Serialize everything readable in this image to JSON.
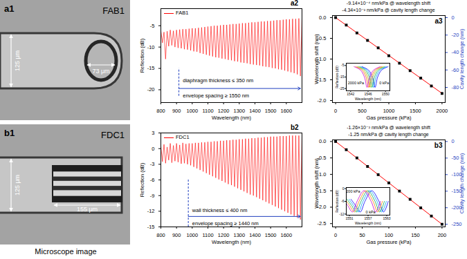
{
  "caption": "Microscope image",
  "chart_data": [
    {
      "type": "image",
      "panel": "a1",
      "title": "FAB1",
      "annotations": [
        {
          "text": "125 μm"
        },
        {
          "text": "73 μm"
        }
      ]
    },
    {
      "type": "line",
      "panel": "a2",
      "legend": "top-left",
      "x_label": "Wavelength (nm)",
      "y_label": "Reflection (dB)",
      "xlim": [
        800,
        1700
      ],
      "xticks": [
        800,
        900,
        1000,
        1100,
        1200,
        1300,
        1400,
        1500,
        1600
      ],
      "ylim": [
        -23,
        -1
      ],
      "yticks": [
        -20,
        -15,
        -10,
        -5
      ],
      "x": [
        800,
        810,
        820,
        830,
        840,
        850,
        860,
        870,
        880,
        890,
        900,
        910,
        920,
        930,
        940,
        950,
        960,
        970,
        980,
        990,
        1000,
        1010,
        1020,
        1030,
        1040,
        1050,
        1060,
        1070,
        1080,
        1090,
        1100,
        1110,
        1120,
        1130,
        1140,
        1150,
        1160,
        1170,
        1180,
        1190,
        1200,
        1210,
        1220,
        1230,
        1240,
        1250,
        1260,
        1270,
        1280,
        1290,
        1300,
        1310,
        1320,
        1330,
        1340,
        1350,
        1360,
        1370,
        1380,
        1390,
        1400,
        1410,
        1420,
        1430,
        1440,
        1450,
        1460,
        1470,
        1480,
        1490,
        1500,
        1510,
        1520,
        1530,
        1540,
        1550,
        1560,
        1570,
        1580,
        1590,
        1600,
        1610,
        1620,
        1630,
        1640,
        1650,
        1660,
        1670,
        1680,
        1690,
        1700
      ],
      "series": [
        {
          "name": "FAB1",
          "color": "#ff0000",
          "values": [
            -6.2,
            -9.0,
            -6.5,
            -12.8,
            -6.3,
            -9.8,
            -6.0,
            -9.6,
            -6.2,
            -10.0,
            -6.0,
            -10.2,
            -5.9,
            -10.3,
            -5.8,
            -10.5,
            -5.8,
            -10.6,
            -5.7,
            -10.8,
            -5.6,
            -11.0,
            -5.6,
            -11.1,
            -5.5,
            -11.4,
            -5.4,
            -11.6,
            -5.3,
            -11.8,
            -5.2,
            -12.0,
            -5.1,
            -12.2,
            -5.0,
            -12.4,
            -5.0,
            -12.5,
            -4.9,
            -12.7,
            -4.8,
            -12.8,
            -4.8,
            -13.0,
            -4.7,
            -13.1,
            -4.6,
            -13.3,
            -4.6,
            -13.4,
            -4.5,
            -13.6,
            -4.4,
            -13.7,
            -4.4,
            -13.8,
            -4.3,
            -14.0,
            -4.2,
            -14.1,
            -4.2,
            -14.2,
            -4.1,
            -14.3,
            -4.0,
            -14.5,
            -4.0,
            -14.6,
            -3.9,
            -14.7,
            -3.9,
            -14.9,
            -3.8,
            -15.0,
            -3.7,
            -15.2,
            -3.7,
            -15.3,
            -3.6,
            -15.5,
            -3.5,
            -15.7,
            -3.5,
            -15.9,
            -3.4,
            -16.1,
            -3.4,
            -16.4,
            -3.3,
            -16.8,
            -3.2
          ]
        }
      ],
      "reference_lines": [
        {
          "x": 915,
          "y1": -21.5,
          "y2": -15,
          "color": "#1f3fbf",
          "line_style": "dashed"
        }
      ],
      "arrows": [
        {
          "x1": 915,
          "x2": 1690,
          "y": -19.7,
          "color": "#1f3fbf"
        }
      ],
      "annotations": [
        {
          "text": "diaphragm thickness ≤ 350 nm",
          "x": 940,
          "y": -17.8
        },
        {
          "text": "envelope spacing ≥ 1550 nm",
          "x": 940,
          "y": -21.4
        }
      ]
    },
    {
      "type": "scatter",
      "panel": "a3",
      "x_label": "Gas pressure (kPa)",
      "y_label": "Wavelength shift (nm)",
      "y2_label": "Cavity length change (nm)",
      "xlim": [
        -60,
        2060
      ],
      "xticks": [
        0,
        500,
        1000,
        1500,
        2000
      ],
      "ylim": [
        -2.05,
        0.05
      ],
      "yticks": [
        {
          "value": 0,
          "label": "0.0"
        },
        -0.5,
        {
          "value": -1,
          "label": "-1.0"
        },
        -1.5,
        {
          "value": -2,
          "label": "-2.0"
        }
      ],
      "y2lim": [
        -97.4,
        2.4
      ],
      "y2ticks": [
        0,
        -20,
        -40,
        -60,
        -80
      ],
      "x": [
        0,
        200,
        400,
        600,
        800,
        1000,
        1200,
        1400,
        1600,
        1800,
        2000
      ],
      "series": [
        {
          "type": "line",
          "color": "#ff0000",
          "values": [
            0,
            -0.183,
            -0.366,
            -0.548,
            -0.731,
            -0.914,
            -1.097,
            -1.28,
            -1.462,
            -1.645,
            -1.828
          ]
        },
        {
          "type": "scatter",
          "color": "#000000",
          "marker": "square",
          "values": [
            0.0,
            -0.18,
            -0.37,
            -0.55,
            -0.73,
            -0.92,
            -1.1,
            -1.28,
            -1.46,
            -1.65,
            -1.83
          ]
        }
      ],
      "annotations": [
        {
          "text": "-9.14×10⁻⁴ nm/kPa @ wavelength shift"
        },
        {
          "text": "-4.34×10⁻² nm/kPa @ cavity length change"
        }
      ],
      "inset": {
        "type": "line",
        "x_label": "Wavelength (nm)",
        "y_label": "Reflection (dB)",
        "xlim": [
          1541,
          1551
        ],
        "xticks": [
          1542,
          1546,
          1550
        ],
        "ylim": [
          -27,
          -3
        ],
        "yticks": [
          -25,
          -15,
          -5
        ],
        "series": [
          {
            "color": "#0000ff",
            "x": [
              1544.6,
              1546.1,
              1547.0,
              1547.6,
              1548.2,
              1549.1,
              1550.6
            ],
            "values": [
              -6,
              -9,
              -15,
              -24,
              -15,
              -9,
              -6
            ]
          },
          {
            "color": "#0099ff",
            "x": [
              1544.23,
              1545.73,
              1546.63,
              1547.23,
              1547.83,
              1548.73,
              1550.23
            ],
            "values": [
              -6,
              -9,
              -15,
              -24,
              -15,
              -9,
              -6
            ]
          },
          {
            "color": "#00b050",
            "x": [
              1543.87,
              1545.37,
              1546.27,
              1546.87,
              1547.47,
              1548.37,
              1549.87
            ],
            "values": [
              -6,
              -9,
              -15,
              -24,
              -15,
              -9,
              -6
            ]
          },
          {
            "color": "#b0b000",
            "x": [
              1543.5,
              1545.0,
              1545.9,
              1546.5,
              1547.1,
              1548.0,
              1549.5
            ],
            "values": [
              -6,
              -9,
              -15,
              -24,
              -15,
              -9,
              -6
            ]
          },
          {
            "color": "#ff6600",
            "x": [
              1543.14,
              1544.64,
              1545.54,
              1546.14,
              1546.74,
              1547.64,
              1549.14
            ],
            "values": [
              -6,
              -9,
              -15,
              -24,
              -15,
              -9,
              -6
            ]
          },
          {
            "color": "#cc00cc",
            "x": [
              1542.77,
              1544.27,
              1545.17,
              1545.77,
              1546.37,
              1547.27,
              1548.77
            ],
            "values": [
              -6,
              -9,
              -15,
              -24,
              -15,
              -9,
              -6
            ]
          }
        ],
        "annotations": [
          {
            "text": "2000 kPa",
            "x": 1543.2,
            "y": -20
          },
          {
            "text": "0 kPa",
            "x": 1549.7,
            "y": -20
          }
        ]
      }
    },
    {
      "type": "image",
      "panel": "b1",
      "title": "FDC1",
      "annotations": [
        {
          "text": "125 μm"
        },
        {
          "text": "155 μm"
        }
      ]
    },
    {
      "type": "line",
      "panel": "b2",
      "legend": "top-left",
      "x_label": "Wavelength (nm)",
      "y_label": "Reflection (dB)",
      "xlim": [
        800,
        1700
      ],
      "xticks": [
        800,
        900,
        1000,
        1100,
        1200,
        1300,
        1400,
        1500,
        1600
      ],
      "ylim": [
        -15,
        3
      ],
      "yticks": [
        3,
        0,
        -3,
        -6,
        -9,
        -12,
        -15
      ],
      "x": [
        800,
        810,
        820,
        830,
        840,
        850,
        860,
        870,
        880,
        890,
        900,
        910,
        920,
        930,
        940,
        950,
        960,
        970,
        980,
        990,
        1000,
        1010,
        1020,
        1030,
        1040,
        1050,
        1060,
        1070,
        1080,
        1090,
        1100,
        1110,
        1120,
        1130,
        1140,
        1150,
        1160,
        1170,
        1180,
        1190,
        1200,
        1210,
        1220,
        1230,
        1240,
        1250,
        1260,
        1270,
        1280,
        1290,
        1300,
        1310,
        1320,
        1330,
        1340,
        1350,
        1360,
        1370,
        1380,
        1390,
        1400,
        1410,
        1420,
        1430,
        1440,
        1450,
        1460,
        1470,
        1480,
        1490,
        1500,
        1510,
        1520,
        1530,
        1540,
        1550,
        1560,
        1570,
        1580,
        1590,
        1600,
        1610,
        1620,
        1630,
        1640,
        1650,
        1660,
        1670,
        1680,
        1690,
        1700
      ],
      "series": [
        {
          "name": "FDC1",
          "color": "#ff0000",
          "values": [
            0.5,
            -2.5,
            0.8,
            -2.8,
            0.3,
            -2.2,
            1.0,
            -2.7,
            0.6,
            -2.4,
            1.0,
            -2.6,
            0.7,
            -2.9,
            1.1,
            -2.8,
            0.9,
            -3.0,
            1.0,
            -3.2,
            1.0,
            -3.5,
            1.1,
            -3.8,
            1.1,
            -4.1,
            1.2,
            -4.4,
            1.2,
            -4.7,
            1.3,
            -5.0,
            1.3,
            -5.3,
            1.4,
            -5.6,
            1.4,
            -5.9,
            1.5,
            -6.2,
            1.5,
            -6.5,
            1.6,
            -6.8,
            1.6,
            -7.0,
            1.7,
            -7.3,
            1.7,
            -7.6,
            1.8,
            -7.9,
            1.8,
            -8.2,
            1.9,
            -8.5,
            1.9,
            -8.8,
            2.0,
            -9.0,
            2.0,
            -9.3,
            2.1,
            -9.6,
            2.1,
            -9.9,
            2.2,
            -10.2,
            2.2,
            -10.5,
            2.3,
            -10.8,
            2.3,
            -11.1,
            2.3,
            -11.4,
            2.4,
            -11.7,
            2.4,
            -12.0,
            2.4,
            -12.3,
            2.5,
            -12.6,
            2.5,
            -12.9,
            2.5,
            -13.2,
            2.5,
            -13.6,
            2.5
          ]
        }
      ],
      "reference_lines": [
        {
          "x": 975,
          "y1": -15,
          "y2": -6,
          "color": "#1f3fbf",
          "line_style": "dashed"
        }
      ],
      "arrows": [
        {
          "x1": 975,
          "x2": 1690,
          "y": -13.0,
          "color": "#1f3fbf"
        }
      ],
      "annotations": [
        {
          "text": "wall thickness ≤ 400 nm",
          "x": 1000,
          "y": -11.9
        },
        {
          "text": "envelope spacing ≥ 1440 nm",
          "x": 1000,
          "y": -14.3
        }
      ]
    },
    {
      "type": "scatter",
      "panel": "b3",
      "x_label": "Gas pressure (kPa)",
      "y_label": "Wavelength shift (nm)",
      "y2_label": "Cavity length change (nm)",
      "xlim": [
        -6,
        206
      ],
      "xticks": [
        0,
        50,
        100,
        150,
        200
      ],
      "ylim": [
        -2.6,
        0.05
      ],
      "yticks": [
        {
          "value": 0,
          "label": "0.0"
        },
        -0.5,
        {
          "value": -1,
          "label": "-1.0"
        },
        -1.5,
        {
          "value": -2,
          "label": "-2.0"
        },
        -2.5
      ],
      "y2lim": [
        -257.9,
        5.0
      ],
      "y2ticks": [
        0,
        -50,
        -100,
        -150,
        -200,
        -250
      ],
      "x": [
        0,
        20,
        40,
        60,
        80,
        100,
        120,
        140,
        160,
        180,
        200
      ],
      "series": [
        {
          "type": "line",
          "color": "#ff0000",
          "values": [
            0,
            -0.252,
            -0.504,
            -0.756,
            -1.008,
            -1.26,
            -1.512,
            -1.764,
            -2.016,
            -2.268,
            -2.52
          ]
        },
        {
          "type": "scatter",
          "color": "#000000",
          "marker": "square",
          "values": [
            0.0,
            -0.25,
            -0.5,
            -0.76,
            -1.01,
            -1.26,
            -1.51,
            -1.76,
            -2.02,
            -2.27,
            -2.52
          ]
        }
      ],
      "annotations": [
        {
          "text": "-1.26×10⁻² nm/kPa @ wavelength shift"
        },
        {
          "text": "-1.25 nm/kPa @ cavity length change"
        }
      ],
      "inset": {
        "type": "line",
        "x_label": "Wavelength (nm)",
        "y_label": "Reflection (dB)",
        "xlim": [
          1550,
          1564
        ],
        "xticks": [
          1551,
          1557,
          1563
        ],
        "ylim": [
          -12.5,
          0.5
        ],
        "yticks": [
          -12,
          -6,
          0
        ],
        "series": [
          {
            "color": "#0000ff",
            "x": [
              1551.5,
              1553.0,
              1554.5,
              1556.0,
              1558.2,
              1560.5,
              1562.0,
              1563.5
            ],
            "values": [
              -5,
              -8,
              -11,
              -6,
              -1,
              -6,
              -11,
              -6
            ]
          },
          {
            "color": "#00a0ff",
            "x": [
              1550.87,
              1552.37,
              1553.87,
              1555.37,
              1557.57,
              1559.87,
              1561.37,
              1562.87
            ],
            "values": [
              -5,
              -8,
              -11,
              -6,
              -1,
              -6,
              -11,
              -6
            ]
          },
          {
            "color": "#00b050",
            "x": [
              1550.24,
              1551.74,
              1553.24,
              1554.74,
              1556.94,
              1559.24,
              1560.74,
              1562.24
            ],
            "values": [
              -5,
              -8,
              -11,
              -6,
              -1,
              -6,
              -11,
              -6
            ]
          },
          {
            "color": "#ff8000",
            "x": [
              1549.61,
              1551.11,
              1552.61,
              1554.11,
              1556.31,
              1558.61,
              1560.11,
              1561.61
            ],
            "values": [
              -5,
              -8,
              -11,
              -6,
              -1,
              -6,
              -11,
              -6
            ]
          },
          {
            "color": "#cc00cc",
            "x": [
              1548.98,
              1550.48,
              1551.98,
              1553.48,
              1555.68,
              1557.98,
              1559.48,
              1560.98
            ],
            "values": [
              -5,
              -8,
              -11,
              -6,
              -1,
              -6,
              -11,
              -6
            ]
          }
        ],
        "annotations": [
          {
            "text": "200 kPa",
            "x": 1552.2,
            "y": -1.5
          },
          {
            "text": "0 kPa",
            "x": 1557.8,
            "y": -11
          }
        ]
      }
    }
  ]
}
